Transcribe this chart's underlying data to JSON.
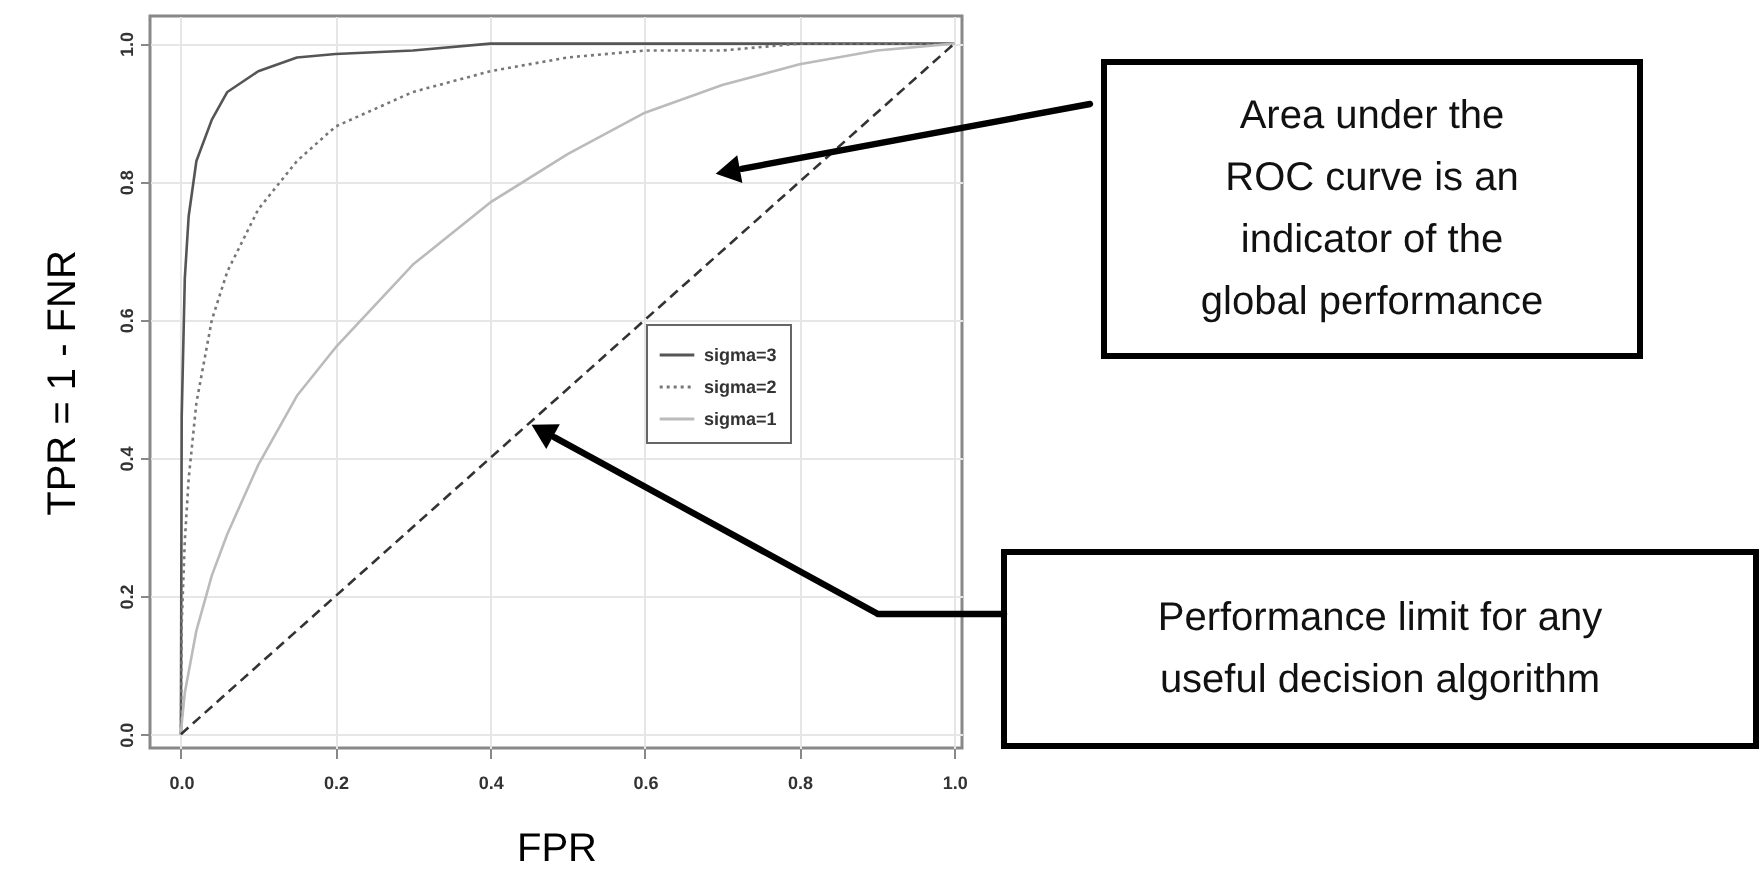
{
  "chart_data": {
    "type": "line",
    "xlabel": "FPR",
    "ylabel": "TPR = 1 - FNR",
    "x": [
      0,
      0.001,
      0.005,
      0.01,
      0.02,
      0.04,
      0.06,
      0.1,
      0.15,
      0.2,
      0.3,
      0.4,
      0.5,
      0.6,
      0.7,
      0.8,
      0.9,
      1
    ],
    "series": [
      {
        "name": "sigma=3",
        "color": "#555555",
        "line_style": "solid",
        "values": [
          0,
          0.46,
          0.66,
          0.75,
          0.83,
          0.89,
          0.93,
          0.96,
          0.98,
          0.985,
          0.99,
          1.0,
          1.0,
          1.0,
          1.0,
          1.0,
          1.0,
          1
        ]
      },
      {
        "name": "sigma=2",
        "color": "#777777",
        "line_style": "dotted",
        "values": [
          0,
          0.16,
          0.28,
          0.37,
          0.48,
          0.6,
          0.67,
          0.76,
          0.83,
          0.88,
          0.93,
          0.96,
          0.98,
          0.99,
          0.99,
          1.0,
          1.0,
          1
        ]
      },
      {
        "name": "sigma=1",
        "color": "#bbbbbb",
        "line_style": "solid",
        "values": [
          0,
          0.015,
          0.06,
          0.09,
          0.15,
          0.23,
          0.29,
          0.39,
          0.49,
          0.56,
          0.68,
          0.77,
          0.84,
          0.9,
          0.94,
          0.97,
          0.99,
          1
        ]
      },
      {
        "color": "#333333",
        "line_style": "dashed",
        "x": [
          0,
          1
        ],
        "values": [
          0,
          1
        ]
      }
    ],
    "xlim": [
      -0.04,
      1.01
    ],
    "ylim": [
      -0.02,
      1.04
    ],
    "xticks": [
      {
        "value": 0,
        "label": "0.0"
      },
      0.2,
      0.4,
      0.6,
      0.8,
      {
        "value": 1,
        "label": "1.0"
      }
    ],
    "yticks": [
      {
        "value": 0,
        "label": "0.0"
      },
      0.2,
      0.4,
      0.6,
      0.8,
      {
        "value": 1,
        "label": "1.0"
      }
    ],
    "grid": true,
    "legend": "right",
    "marker": "none",
    "annotations": [
      "Area under the\nROC curve is an\nindicator of the\nglobal performance",
      "Performance limit for any\nuseful decision algorithm"
    ]
  }
}
